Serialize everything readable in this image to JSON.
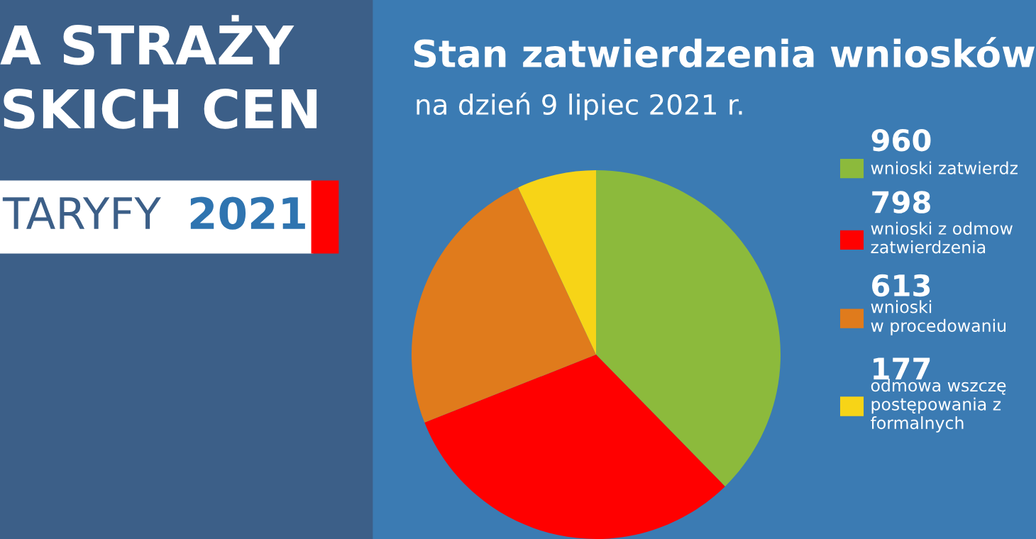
{
  "chart_data": {
    "type": "pie",
    "title": "Stan zatwierdzenia wniosków",
    "subtitle": "na dzień 9 lipiec 2021 r.",
    "categories": [
      "wnioski zatwierdz",
      "wnioski z odmow\nzatwierdzenia",
      "wnioski\nw procedowaniu",
      "odmowa wszczę\npostępowania z\nformalnych"
    ],
    "values": [
      960,
      798,
      613,
      177
    ],
    "colors": [
      "#8cba3c",
      "#ff0000",
      "#e07b1c",
      "#f7d417"
    ],
    "data_labels": true,
    "legend": "right",
    "annotations": [
      "A STRAŻY",
      "SKICH CEN",
      "TARYFY",
      "2021"
    ]
  }
}
